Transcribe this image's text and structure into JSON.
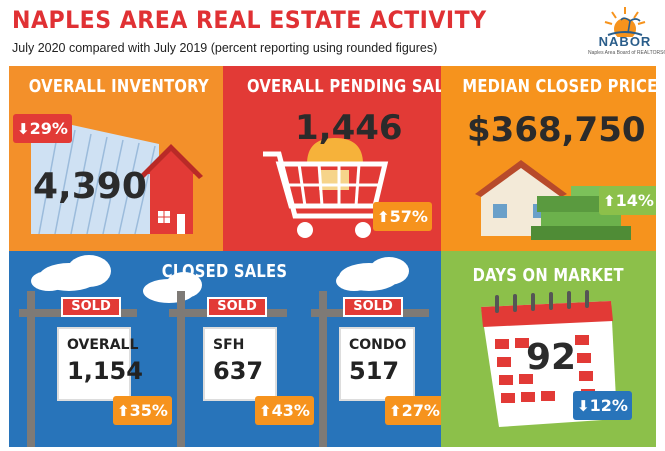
{
  "header": {
    "title": "NAPLES AREA REAL ESTATE ACTIVITY",
    "subtitle": "July 2020 compared with July 2019 (percent reporting using rounded figures)",
    "logo_text": "NABOR",
    "logo_sub": "Naples Area Board of REALTORS®"
  },
  "inventory": {
    "heading": "OVERALL INVENTORY",
    "value": "4,390",
    "change": "29%",
    "direction": "down"
  },
  "pending": {
    "heading": "OVERALL PENDING SALES",
    "value": "1,446",
    "change": "57%",
    "direction": "up"
  },
  "median": {
    "heading": "MEDIAN CLOSED PRICE",
    "value": "$368,750",
    "change": "14%",
    "direction": "up"
  },
  "closed": {
    "heading": "CLOSED SALES",
    "signs": [
      {
        "sold": "SOLD",
        "label": "OVERALL",
        "value": "1,154",
        "change": "35%",
        "direction": "up"
      },
      {
        "sold": "SOLD",
        "label": "SFH",
        "value": "637",
        "change": "43%",
        "direction": "up"
      },
      {
        "sold": "SOLD",
        "label": "CONDO",
        "value": "517",
        "change": "27%",
        "direction": "up"
      }
    ]
  },
  "days": {
    "heading": "DAYS ON MARKET",
    "value": "92",
    "change": "12%",
    "direction": "down"
  },
  "colors": {
    "red": "#e23a36",
    "orange": "#f6931d",
    "blue": "#2874ba",
    "green": "#8cc04a"
  },
  "arrows": {
    "up": "⬆",
    "down": "⬇"
  }
}
